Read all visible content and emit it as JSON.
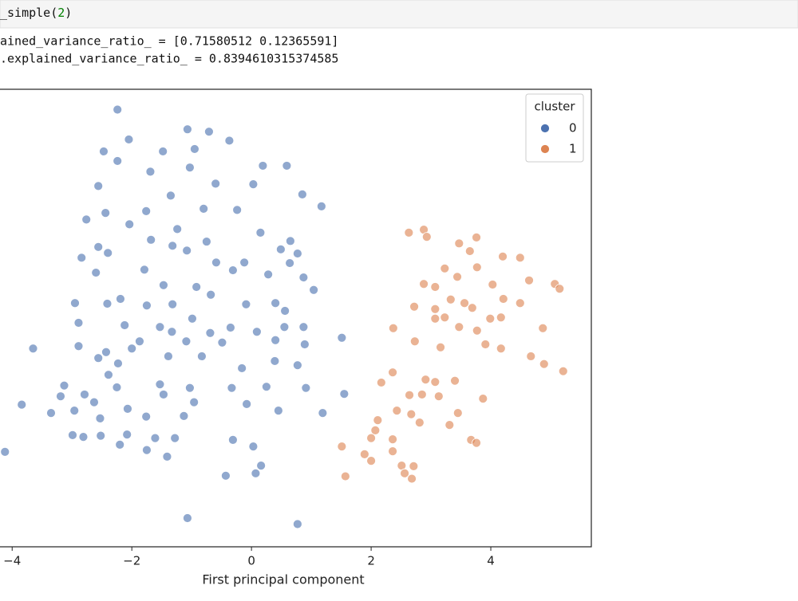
{
  "notebook": {
    "input": {
      "prefix": "_simple(",
      "arg": "2",
      "suffix": ")"
    },
    "output": [
      "ained_variance_ratio_ = [0.71580512 0.12365591]",
      ".explained_variance_ratio_ = 0.8394610315374585"
    ]
  },
  "chart_data": {
    "type": "scatter",
    "x_label": "First principal component",
    "xlim": [
      -4.47,
      5.68
    ],
    "ylim": [
      -3.83,
      3.83
    ],
    "xticks": [
      {
        "value": -4,
        "label": "−4"
      },
      {
        "value": -2,
        "label": "−2"
      },
      0,
      2,
      4
    ],
    "legend_title": "cluster",
    "legend": "upper right",
    "series": [
      {
        "name": "0",
        "color": "#4c72b0",
        "x": [
          -2.24,
          -1.07,
          -0.71,
          -2.05,
          -2.47,
          -2.24,
          -1.48,
          -0.95,
          -0.37,
          -1.69,
          -1.03,
          0.19,
          0.59,
          -2.56,
          -1.35,
          -0.6,
          0.03,
          0.85,
          1.17,
          -2.44,
          -1.76,
          -2.76,
          -2.04,
          -1.24,
          -0.24,
          -0.8,
          -2.56,
          -1.68,
          -0.75,
          0.15,
          0.65,
          -2.84,
          -2.4,
          -1.32,
          -1.08,
          -0.59,
          -0.12,
          0.49,
          0.77,
          -2.6,
          -1.79,
          -1.47,
          -0.92,
          -0.31,
          0.28,
          0.64,
          0.87,
          1.04,
          -2.95,
          -2.41,
          -2.19,
          -1.75,
          -1.32,
          -0.68,
          -0.09,
          0.4,
          0.56,
          -2.89,
          -2.12,
          -1.53,
          -0.99,
          -0.69,
          -0.35,
          0.09,
          0.55,
          0.87,
          -3.65,
          -2.89,
          -2.43,
          -1.87,
          -1.33,
          -1.09,
          -0.49,
          0.4,
          0.89,
          1.51,
          -2.56,
          -2.23,
          -1.39,
          -0.83,
          -0.16,
          0.39,
          0.77,
          -3.13,
          -2.25,
          -1.53,
          -1.03,
          -0.33,
          0.25,
          0.91,
          -3.84,
          -3.19,
          -2.63,
          -2.07,
          -1.47,
          -0.96,
          -0.08,
          0.45,
          1.19,
          1.55,
          -3.35,
          -2.96,
          -2.53,
          -1.76,
          -1.13,
          -2.99,
          -2.52,
          -2.08,
          -1.61,
          -1.28,
          -2.2,
          -1.75,
          -1.41,
          -0.31,
          0.03,
          0.16,
          -4.12,
          -0.43,
          0.07,
          -1.07,
          0.77,
          -2.79,
          -2.81,
          -2.39,
          -2.0
        ],
        "y": [
          3.49,
          3.16,
          3.12,
          2.99,
          2.79,
          2.63,
          2.79,
          2.83,
          2.97,
          2.45,
          2.52,
          2.55,
          2.55,
          2.21,
          2.05,
          2.25,
          2.24,
          2.07,
          1.87,
          1.76,
          1.79,
          1.65,
          1.57,
          1.49,
          1.81,
          1.83,
          1.19,
          1.31,
          1.28,
          1.43,
          1.29,
          1.01,
          1.09,
          1.21,
          1.13,
          0.93,
          0.93,
          1.15,
          1.08,
          0.76,
          0.81,
          0.55,
          0.52,
          0.8,
          0.73,
          0.92,
          0.68,
          0.47,
          0.25,
          0.24,
          0.32,
          0.21,
          0.23,
          0.39,
          0.23,
          0.25,
          0.12,
          -0.08,
          -0.12,
          -0.15,
          -0.01,
          -0.25,
          -0.16,
          -0.23,
          -0.15,
          -0.15,
          -0.51,
          -0.47,
          -0.57,
          -0.39,
          -0.23,
          -0.39,
          -0.41,
          -0.37,
          -0.44,
          -0.33,
          -0.67,
          -0.76,
          -0.64,
          -0.64,
          -0.84,
          -0.72,
          -0.79,
          -1.13,
          -1.16,
          -1.11,
          -1.17,
          -1.17,
          -1.15,
          -1.17,
          -1.45,
          -1.31,
          -1.41,
          -1.52,
          -1.28,
          -1.41,
          -1.44,
          -1.55,
          -1.59,
          -1.27,
          -1.59,
          -1.55,
          -1.68,
          -1.65,
          -1.64,
          -1.96,
          -1.97,
          -1.95,
          -2.01,
          -2.01,
          -2.12,
          -2.21,
          -2.32,
          -2.04,
          -2.15,
          -2.47,
          -2.24,
          -2.64,
          -2.6,
          -3.35,
          -3.45,
          -1.28,
          -1.99,
          -0.95,
          -0.51
        ]
      },
      {
        "name": "1",
        "color": "#dd8452",
        "x": [
          2.88,
          2.63,
          2.93,
          3.47,
          3.76,
          3.65,
          4.2,
          4.49,
          3.23,
          3.77,
          2.88,
          3.07,
          3.44,
          4.03,
          4.64,
          5.07,
          5.15,
          2.72,
          3.07,
          3.33,
          3.56,
          3.69,
          4.21,
          4.49,
          3.07,
          3.23,
          3.99,
          4.17,
          2.37,
          2.73,
          3.16,
          3.47,
          3.77,
          3.91,
          4.17,
          4.87,
          4.67,
          4.89,
          5.21,
          2.36,
          2.17,
          2.91,
          3.07,
          3.4,
          2.64,
          2.85,
          3.13,
          3.87,
          2.11,
          2.43,
          2.67,
          3.45,
          2.81,
          2.07,
          2.0,
          2.36,
          3.31,
          3.67,
          3.76,
          1.51,
          1.89,
          2.0,
          2.36,
          2.51,
          2.56,
          2.68,
          1.57,
          2.71
        ],
        "y": [
          1.48,
          1.43,
          1.36,
          1.25,
          1.35,
          1.12,
          1.03,
          1.01,
          0.83,
          0.85,
          0.57,
          0.52,
          0.69,
          0.56,
          0.63,
          0.57,
          0.49,
          0.19,
          0.15,
          0.31,
          0.25,
          0.17,
          0.32,
          0.25,
          -0.01,
          0.01,
          -0.01,
          0.01,
          -0.17,
          -0.39,
          -0.49,
          -0.15,
          -0.21,
          -0.44,
          -0.51,
          -0.17,
          -0.64,
          -0.77,
          -0.89,
          -0.91,
          -1.08,
          -1.03,
          -1.07,
          -1.05,
          -1.29,
          -1.28,
          -1.31,
          -1.35,
          -1.71,
          -1.55,
          -1.61,
          -1.59,
          -1.75,
          -1.88,
          -2.01,
          -2.03,
          -1.79,
          -2.04,
          -2.09,
          -2.15,
          -2.28,
          -2.39,
          -2.23,
          -2.47,
          -2.6,
          -2.69,
          -2.65,
          -2.48
        ]
      }
    ]
  }
}
